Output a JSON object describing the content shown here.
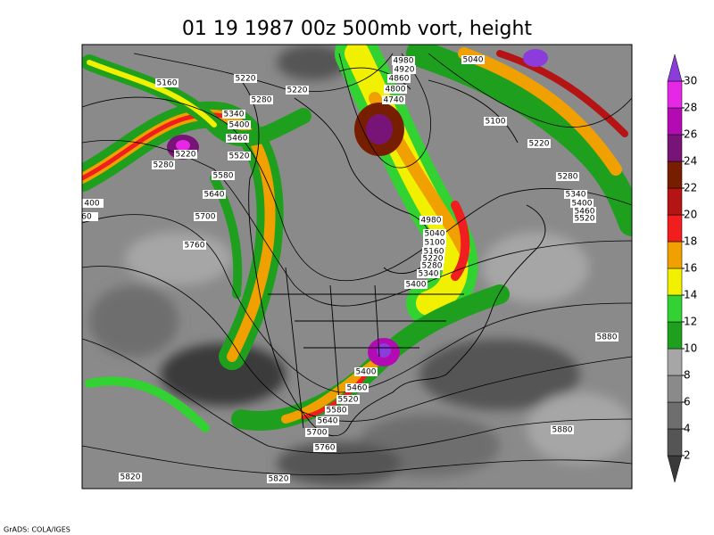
{
  "title": "01 19 1987 00z 500mb vort, height",
  "footer": "GrADS: COLA/IGES",
  "contour_labels": [
    5160,
    5220,
    5220,
    5280,
    5340,
    5400,
    5460,
    5520,
    5220,
    5280,
    5580,
    5640,
    5700,
    5760,
    400,
    60,
    4980,
    4920,
    4860,
    4800,
    4740,
    5040,
    5100,
    5220,
    5280,
    5340,
    5400,
    5460,
    5520,
    4980,
    5040,
    5100,
    5160,
    5220,
    5280,
    5340,
    5400,
    5880,
    5400,
    5460,
    5520,
    5580,
    5640,
    5700,
    5760,
    5880,
    5820,
    5820
  ],
  "colorbar": {
    "levels": [
      2,
      4,
      6,
      8,
      10,
      12,
      14,
      16,
      18,
      20,
      22,
      24,
      26,
      28,
      30
    ],
    "colors": [
      "#3a3a3a",
      "#555555",
      "#6e6e6e",
      "#8a8a8a",
      "#a6a6a6",
      "#1ea01e",
      "#32d232",
      "#f0f000",
      "#f0a000",
      "#f01e1e",
      "#b41414",
      "#781e00",
      "#781478",
      "#b40ab4",
      "#e628e6",
      "#8c3cdc"
    ]
  }
}
